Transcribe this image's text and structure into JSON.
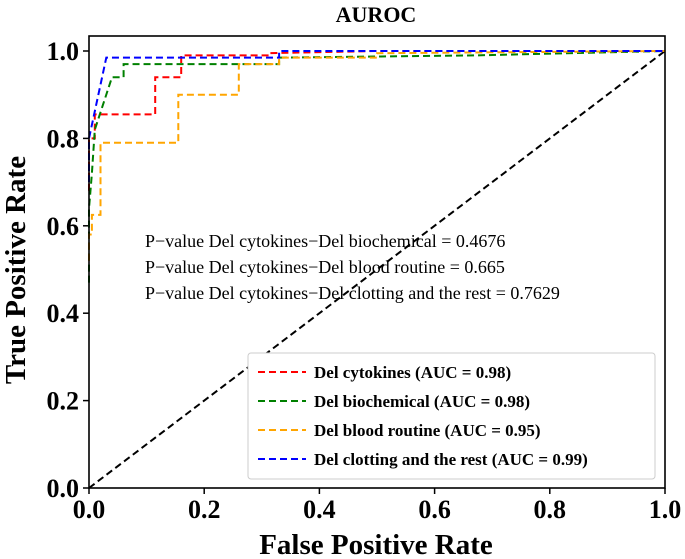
{
  "chart_data": {
    "type": "line",
    "title": "AUROC",
    "xlabel": "False Positive Rate",
    "ylabel": "True Positive Rate",
    "xlim": [
      0.0,
      1.0
    ],
    "ylim": [
      0.0,
      1.0
    ],
    "grid": false,
    "xticks": [
      "0.0",
      "0.2",
      "0.4",
      "0.6",
      "0.8",
      "1.0"
    ],
    "yticks": [
      "0.0",
      "0.2",
      "0.4",
      "0.6",
      "0.8",
      "1.0"
    ],
    "legend_position": "lower-right",
    "series": [
      {
        "name": "Del cytokines (AUC = 0.98)",
        "color": "#ff0000",
        "x": [
          0.0,
          0.0,
          0.01,
          0.01,
          0.115,
          0.115,
          0.16,
          0.16,
          0.31,
          0.31,
          0.5,
          1.0
        ],
        "y": [
          0.68,
          0.8,
          0.8,
          0.855,
          0.855,
          0.94,
          0.94,
          0.99,
          0.99,
          0.995,
          1.0,
          1.0
        ]
      },
      {
        "name": "Del biochemical (AUC = 0.98)",
        "color": "#008000",
        "x": [
          0.0,
          0.0,
          0.005,
          0.01,
          0.04,
          0.06,
          0.06,
          0.33,
          0.33,
          0.67,
          1.0
        ],
        "y": [
          0.47,
          0.64,
          0.72,
          0.82,
          0.94,
          0.94,
          0.97,
          0.97,
          0.985,
          0.99,
          1.0
        ]
      },
      {
        "name": "Del blood routine (AUC = 0.95)",
        "color": "#ffa500",
        "x": [
          0.0,
          0.0,
          0.005,
          0.005,
          0.02,
          0.02,
          0.155,
          0.155,
          0.26,
          0.26,
          0.33,
          0.33,
          0.5,
          0.5,
          1.0
        ],
        "y": [
          0.52,
          0.58,
          0.58,
          0.625,
          0.625,
          0.79,
          0.79,
          0.9,
          0.9,
          0.97,
          0.97,
          0.985,
          0.985,
          0.995,
          1.0
        ]
      },
      {
        "name": "Del clotting and the rest (AUC = 0.99)",
        "color": "#0000ff",
        "x": [
          0.0,
          0.0,
          0.03,
          0.03,
          0.33,
          0.33,
          1.0
        ],
        "y": [
          0.7,
          0.8,
          0.985,
          0.985,
          0.985,
          1.0,
          1.0
        ]
      }
    ],
    "reference_line": {
      "x": [
        0.0,
        1.0
      ],
      "y": [
        0.0,
        1.0
      ],
      "color": "#000000",
      "style": "dashed"
    },
    "annotations": [
      "P−value Del cytokines−Del biochemical = 0.4676",
      "P−value Del cytokines−Del blood routine = 0.665",
      "P−value Del cytokines−Del clotting and the rest = 0.7629"
    ]
  }
}
